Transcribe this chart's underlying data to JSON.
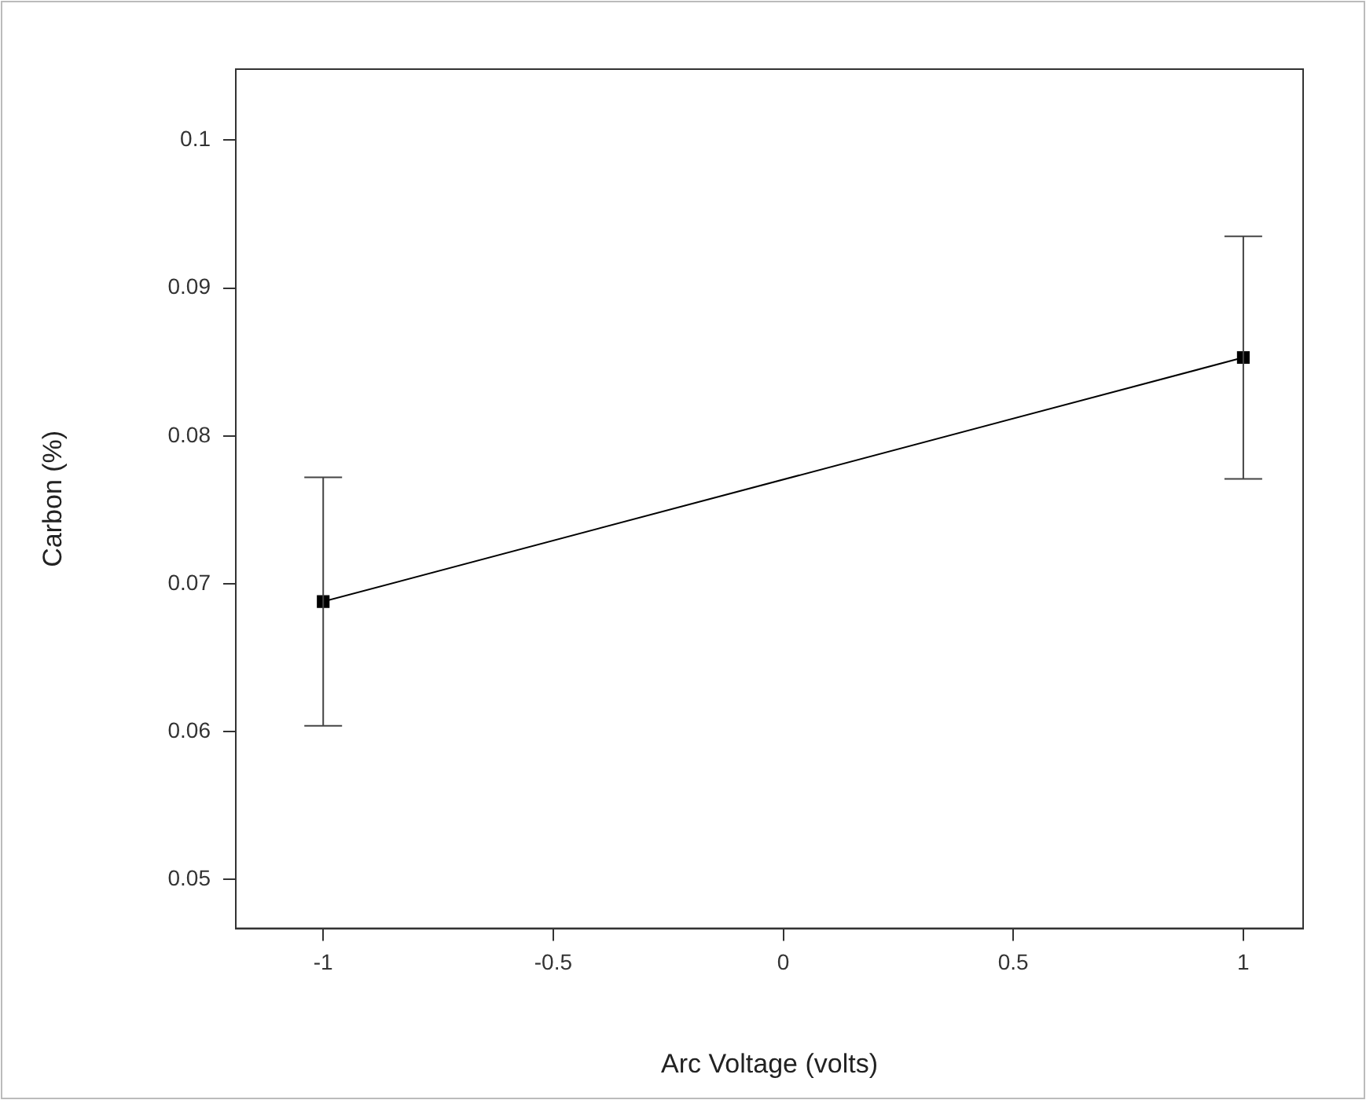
{
  "chart_data": {
    "type": "line",
    "xlabel": "Arc Voltage (volts)",
    "ylabel": "Carbon (%)",
    "x": [
      -1,
      1
    ],
    "series": [
      {
        "color": "#000000",
        "values": [
          0.0688,
          0.0853
        ],
        "errors": [
          0.0084,
          0.0082
        ]
      }
    ],
    "xlim": [
      -1.19,
      1.13
    ],
    "xticks": [
      -1,
      -0.5,
      0,
      0.5,
      1
    ],
    "ylim": [
      0.0467,
      0.1048
    ],
    "yticks": [
      0.05,
      0.06,
      0.07,
      0.08,
      0.09,
      0.1
    ],
    "grid": false,
    "legend": false,
    "marker": "square",
    "line_style": "solid"
  }
}
